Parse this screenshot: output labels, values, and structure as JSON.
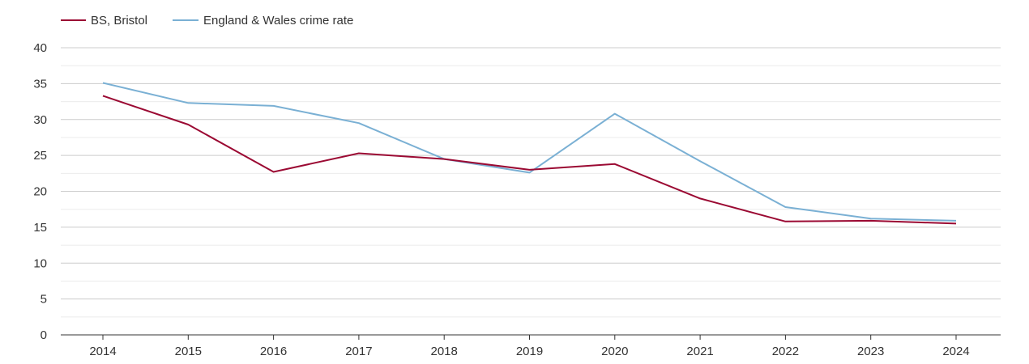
{
  "chart_data": {
    "type": "line",
    "title": "",
    "xlabel": "",
    "ylabel": "",
    "x": [
      "2014",
      "2015",
      "2016",
      "2017",
      "2018",
      "2019",
      "2020",
      "2021",
      "2022",
      "2023",
      "2024"
    ],
    "ylim": [
      0,
      40
    ],
    "yticks": [
      "0",
      "5",
      "10",
      "15",
      "20",
      "25",
      "30",
      "35",
      "40"
    ],
    "grid": true,
    "legend_position": "top-left",
    "series": [
      {
        "name": "BS, Bristol",
        "color": "#9b0a33",
        "values": [
          33.3,
          29.3,
          22.7,
          25.3,
          24.5,
          23.0,
          23.8,
          19.0,
          15.8,
          15.9,
          15.5
        ]
      },
      {
        "name": "England & Wales crime rate",
        "color": "#7ab0d4",
        "values": [
          35.1,
          32.3,
          31.9,
          29.5,
          24.5,
          22.6,
          30.8,
          24.2,
          17.8,
          16.2,
          15.9
        ]
      }
    ]
  }
}
